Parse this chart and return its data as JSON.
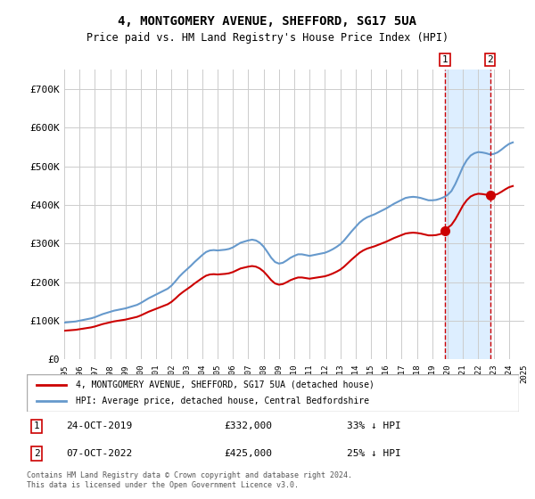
{
  "title": "4, MONTGOMERY AVENUE, SHEFFORD, SG17 5UA",
  "subtitle": "Price paid vs. HM Land Registry's House Price Index (HPI)",
  "legend_label_red": "4, MONTGOMERY AVENUE, SHEFFORD, SG17 5UA (detached house)",
  "legend_label_blue": "HPI: Average price, detached house, Central Bedfordshire",
  "transaction1_label": "1",
  "transaction1_date": "24-OCT-2019",
  "transaction1_price": "£332,000",
  "transaction1_hpi": "33% ↓ HPI",
  "transaction2_label": "2",
  "transaction2_date": "07-OCT-2022",
  "transaction2_price": "£425,000",
  "transaction2_hpi": "25% ↓ HPI",
  "footnote": "Contains HM Land Registry data © Crown copyright and database right 2024.\nThis data is licensed under the Open Government Licence v3.0.",
  "ylim": [
    0,
    750000
  ],
  "yticks": [
    0,
    100000,
    200000,
    300000,
    400000,
    500000,
    600000,
    700000
  ],
  "ytick_labels": [
    "£0",
    "£100K",
    "£200K",
    "£300K",
    "£400K",
    "£500K",
    "£600K",
    "£700K"
  ],
  "background_color": "#ffffff",
  "grid_color": "#cccccc",
  "red_color": "#cc0000",
  "blue_color": "#6699cc",
  "highlight_bg": "#ddeeff",
  "dashed_line_color": "#cc0000",
  "transaction1_x": 2019.82,
  "transaction2_x": 2022.77,
  "hpi_years": [
    1995,
    1995.25,
    1995.5,
    1995.75,
    1996,
    1996.25,
    1996.5,
    1996.75,
    1997,
    1997.25,
    1997.5,
    1997.75,
    1998,
    1998.25,
    1998.5,
    1998.75,
    1999,
    1999.25,
    1999.5,
    1999.75,
    2000,
    2000.25,
    2000.5,
    2000.75,
    2001,
    2001.25,
    2001.5,
    2001.75,
    2002,
    2002.25,
    2002.5,
    2002.75,
    2003,
    2003.25,
    2003.5,
    2003.75,
    2004,
    2004.25,
    2004.5,
    2004.75,
    2005,
    2005.25,
    2005.5,
    2005.75,
    2006,
    2006.25,
    2006.5,
    2006.75,
    2007,
    2007.25,
    2007.5,
    2007.75,
    2008,
    2008.25,
    2008.5,
    2008.75,
    2009,
    2009.25,
    2009.5,
    2009.75,
    2010,
    2010.25,
    2010.5,
    2010.75,
    2011,
    2011.25,
    2011.5,
    2011.75,
    2012,
    2012.25,
    2012.5,
    2012.75,
    2013,
    2013.25,
    2013.5,
    2013.75,
    2014,
    2014.25,
    2014.5,
    2014.75,
    2015,
    2015.25,
    2015.5,
    2015.75,
    2016,
    2016.25,
    2016.5,
    2016.75,
    2017,
    2017.25,
    2017.5,
    2017.75,
    2018,
    2018.25,
    2018.5,
    2018.75,
    2019,
    2019.25,
    2019.5,
    2019.75,
    2020,
    2020.25,
    2020.5,
    2020.75,
    2021,
    2021.25,
    2021.5,
    2021.75,
    2022,
    2022.25,
    2022.5,
    2022.75,
    2023,
    2023.25,
    2023.5,
    2023.75,
    2024,
    2024.25
  ],
  "hpi_values": [
    95000,
    96000,
    97000,
    98000,
    100000,
    102000,
    104000,
    106000,
    109000,
    113000,
    117000,
    120000,
    123000,
    126000,
    128000,
    130000,
    132000,
    135000,
    138000,
    141000,
    146000,
    152000,
    158000,
    163000,
    168000,
    173000,
    178000,
    183000,
    191000,
    202000,
    214000,
    224000,
    233000,
    242000,
    252000,
    261000,
    270000,
    278000,
    282000,
    283000,
    282000,
    283000,
    284000,
    286000,
    290000,
    296000,
    302000,
    305000,
    308000,
    310000,
    308000,
    302000,
    292000,
    278000,
    263000,
    252000,
    248000,
    250000,
    256000,
    263000,
    268000,
    272000,
    272000,
    270000,
    268000,
    270000,
    272000,
    274000,
    276000,
    280000,
    285000,
    291000,
    298000,
    308000,
    320000,
    332000,
    343000,
    354000,
    362000,
    368000,
    372000,
    376000,
    381000,
    386000,
    391000,
    397000,
    403000,
    408000,
    413000,
    418000,
    420000,
    421000,
    420000,
    418000,
    415000,
    412000,
    412000,
    413000,
    416000,
    420000,
    426000,
    436000,
    454000,
    476000,
    499000,
    516000,
    528000,
    534000,
    537000,
    536000,
    534000,
    531000,
    532000,
    536000,
    543000,
    551000,
    558000,
    562000
  ],
  "sale_years": [
    2019.82,
    2022.77
  ],
  "sale_values": [
    332000,
    425000
  ],
  "xmin": 1995,
  "xmax": 2025
}
